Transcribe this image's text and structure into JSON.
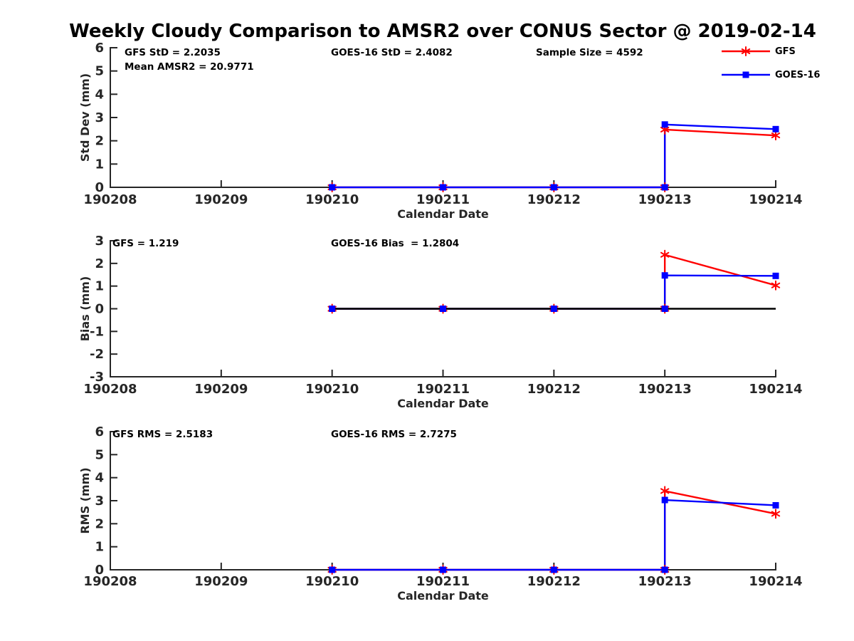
{
  "title": "Weekly Cloudy Comparison to AMSR2 over CONUS Sector @ 2019-02-14",
  "colors": {
    "gfs": "#ff0000",
    "goes16": "#0000ff",
    "axis": "#262626",
    "annotation_text": "#000000",
    "zero_line": "#000000",
    "background": "#ffffff"
  },
  "legend": {
    "position": "top-right",
    "entries": [
      {
        "label": "GFS",
        "series": "gfs",
        "marker": "asterisk",
        "color": "#ff0000"
      },
      {
        "label": "GOES-16",
        "series": "goes16",
        "marker": "square",
        "color": "#0000ff"
      }
    ]
  },
  "chart_data": [
    {
      "type": "line",
      "name": "std-dev",
      "ylabel": "Std Dev (mm)",
      "xlabel": "Calendar Date",
      "ylim": [
        0,
        6
      ],
      "yticks": [
        0,
        1,
        2,
        3,
        4,
        5,
        6
      ],
      "xlim": [
        190208,
        190214
      ],
      "xticks": [
        190208,
        190209,
        190210,
        190211,
        190212,
        190213,
        190214
      ],
      "xticklabels": [
        "190208",
        "190209",
        "190210",
        "190211",
        "190212",
        "190213",
        "190214"
      ],
      "grid": false,
      "annotations": [
        {
          "slot": "left1",
          "text": "GFS StD = 2.2035"
        },
        {
          "slot": "left2",
          "text": "Mean AMSR2 = 20.9771"
        },
        {
          "slot": "center",
          "text": "GOES-16 StD = 2.4082"
        },
        {
          "slot": "right",
          "text": "Sample Size = 4592"
        }
      ],
      "series": [
        {
          "name": "GFS",
          "color": "#ff0000",
          "marker": "asterisk",
          "x": [
            190210,
            190211,
            190212,
            190213,
            190213,
            190214
          ],
          "y": [
            0,
            0,
            0,
            0,
            2.48,
            2.23
          ]
        },
        {
          "name": "GOES-16",
          "color": "#0000ff",
          "marker": "square",
          "x": [
            190210,
            190211,
            190212,
            190213,
            190213,
            190214
          ],
          "y": [
            0,
            0,
            0,
            0,
            2.7,
            2.5
          ]
        }
      ]
    },
    {
      "type": "line",
      "name": "bias",
      "ylabel": "Bias (mm)",
      "xlabel": "Calendar Date",
      "ylim": [
        -3,
        3
      ],
      "yticks": [
        -3,
        -2,
        -1,
        0,
        1,
        2,
        3
      ],
      "xlim": [
        190208,
        190214
      ],
      "xticks": [
        190208,
        190209,
        190210,
        190211,
        190212,
        190213,
        190214
      ],
      "xticklabels": [
        "190208",
        "190209",
        "190210",
        "190211",
        "190212",
        "190213",
        "190214"
      ],
      "grid": false,
      "annotations": [
        {
          "slot": "left1",
          "text": "GFS = 1.219"
        },
        {
          "slot": "center",
          "text": "GOES-16 Bias  = 1.2804"
        }
      ],
      "zero_line": {
        "x": [
          190210,
          190214
        ],
        "y": 0
      },
      "series": [
        {
          "name": "GFS",
          "color": "#ff0000",
          "marker": "asterisk",
          "x": [
            190210,
            190211,
            190212,
            190213,
            190213,
            190214
          ],
          "y": [
            0,
            0,
            0,
            0,
            2.38,
            1.03
          ]
        },
        {
          "name": "GOES-16",
          "color": "#0000ff",
          "marker": "square",
          "x": [
            190210,
            190211,
            190212,
            190213,
            190213,
            190214
          ],
          "y": [
            0,
            0,
            0,
            0,
            1.47,
            1.45
          ]
        }
      ]
    },
    {
      "type": "line",
      "name": "rms",
      "ylabel": "RMS (mm)",
      "xlabel": "Calendar Date",
      "ylim": [
        0,
        6
      ],
      "yticks": [
        0,
        1,
        2,
        3,
        4,
        5,
        6
      ],
      "xlim": [
        190208,
        190214
      ],
      "xticks": [
        190208,
        190209,
        190210,
        190211,
        190212,
        190213,
        190214
      ],
      "xticklabels": [
        "190208",
        "190209",
        "190210",
        "190211",
        "190212",
        "190213",
        "190214"
      ],
      "grid": false,
      "annotations": [
        {
          "slot": "left1",
          "text": "GFS RMS = 2.5183"
        },
        {
          "slot": "center",
          "text": "GOES-16 RMS = 2.7275"
        }
      ],
      "series": [
        {
          "name": "GFS",
          "color": "#ff0000",
          "marker": "asterisk",
          "x": [
            190210,
            190211,
            190212,
            190213,
            190213,
            190214
          ],
          "y": [
            0,
            0,
            0,
            0,
            3.42,
            2.43
          ]
        },
        {
          "name": "GOES-16",
          "color": "#0000ff",
          "marker": "square",
          "x": [
            190210,
            190211,
            190212,
            190213,
            190213,
            190214
          ],
          "y": [
            0,
            0,
            0,
            0,
            3.03,
            2.8
          ]
        }
      ]
    }
  ]
}
